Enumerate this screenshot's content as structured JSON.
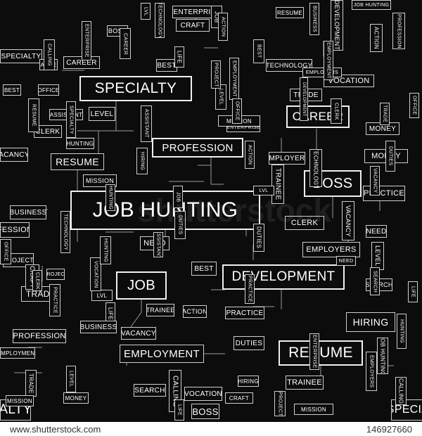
{
  "words": [
    {
      "id": "job-hunting",
      "text": "JOB HUNTING"
    },
    {
      "id": "specialty",
      "text": "SPECIALTY"
    },
    {
      "id": "development",
      "text": "DEVELOPMENT"
    },
    {
      "id": "resume",
      "text": "RESUME"
    },
    {
      "id": "boss",
      "text": "BOSS"
    },
    {
      "id": "job",
      "text": "JOB"
    },
    {
      "id": "career",
      "text": "CAREER"
    },
    {
      "id": "profession",
      "text": "PROFESSION"
    },
    {
      "id": "employment",
      "text": "EMPLOYMENT"
    },
    {
      "id": "hiring",
      "text": "HIRING"
    },
    {
      "id": "employers",
      "text": "EMPLOYERS"
    },
    {
      "id": "trainee",
      "text": "TRAINEE"
    },
    {
      "id": "vacancy",
      "text": "VACANCY"
    },
    {
      "id": "clerk",
      "text": "CLERK"
    },
    {
      "id": "practice",
      "text": "PRACTICE"
    },
    {
      "id": "trade",
      "text": "TRADE"
    },
    {
      "id": "business",
      "text": "BUSINESS"
    },
    {
      "id": "calling",
      "text": "CALLING"
    },
    {
      "id": "need",
      "text": "NEED"
    },
    {
      "id": "best",
      "text": "BEST"
    },
    {
      "id": "vocation",
      "text": "VOCATION"
    },
    {
      "id": "enterprise",
      "text": "ENTERPRISE"
    },
    {
      "id": "craft",
      "text": "CRAFT"
    },
    {
      "id": "money",
      "text": "MONEY"
    },
    {
      "id": "project",
      "text": "PROJECT"
    },
    {
      "id": "level",
      "text": "LEVEL"
    },
    {
      "id": "duties",
      "text": "DUTIES"
    },
    {
      "id": "assistant",
      "text": "ASSISTANT"
    },
    {
      "id": "hunting",
      "text": "HUNTING"
    },
    {
      "id": "mission",
      "text": "MISSION"
    },
    {
      "id": "technology",
      "text": "TECHNOLOGY"
    },
    {
      "id": "search",
      "text": "SEARCH"
    },
    {
      "id": "action",
      "text": "ACTION"
    },
    {
      "id": "office",
      "text": "OFFICE"
    },
    {
      "id": "life",
      "text": "LIFE"
    },
    {
      "id": "lvl",
      "text": "LVL"
    },
    {
      "id": "alty",
      "text": "ALTY"
    },
    {
      "id": "specia",
      "text": "SPECIA"
    },
    {
      "id": "fession",
      "text": "FESSION"
    },
    {
      "id": "acancy",
      "text": "ACANCY"
    }
  ],
  "watermark": {
    "text": "shutterstock"
  },
  "footer": {
    "site": "www.shutterstock.com",
    "id": "146927660"
  }
}
